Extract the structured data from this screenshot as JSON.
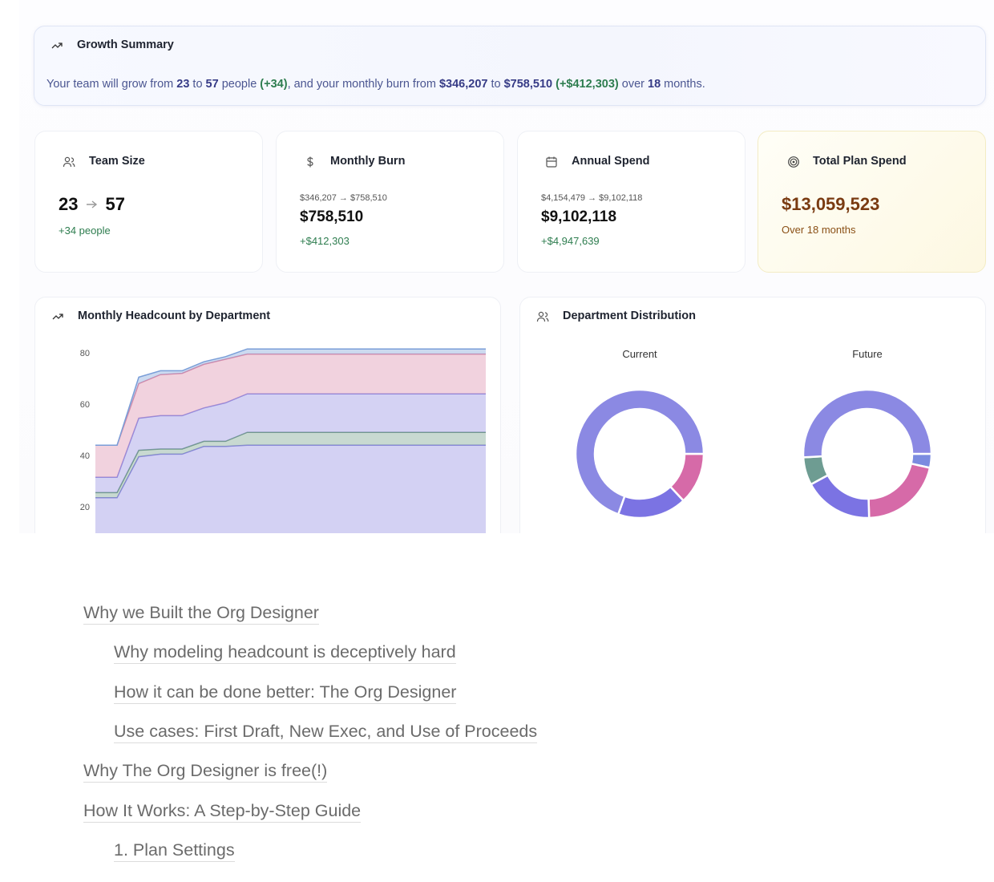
{
  "summary": {
    "title": "Growth Summary",
    "segments": [
      {
        "text": "Your team will grow from ",
        "style": "plain"
      },
      {
        "text": "23",
        "style": "strong"
      },
      {
        "text": " to ",
        "style": "plain"
      },
      {
        "text": "57",
        "style": "strong"
      },
      {
        "text": " people ",
        "style": "plain"
      },
      {
        "text": "(+34)",
        "style": "positive"
      },
      {
        "text": ", and your monthly burn from ",
        "style": "plain"
      },
      {
        "text": "$346,207",
        "style": "strong"
      },
      {
        "text": " to ",
        "style": "plain"
      },
      {
        "text": "$758,510",
        "style": "strong"
      },
      {
        "text": " ",
        "style": "plain"
      },
      {
        "text": "(+$412,303)",
        "style": "positive"
      },
      {
        "text": " over ",
        "style": "plain"
      },
      {
        "text": "18",
        "style": "strong"
      },
      {
        "text": " months.",
        "style": "plain"
      }
    ]
  },
  "cards": [
    {
      "title": "Team Size",
      "value_from": "23",
      "value_to": "57",
      "delta": "+34 people"
    },
    {
      "title": "Monthly Burn",
      "range": "$346,207 → $758,510",
      "value": "$758,510",
      "delta": "+$412,303"
    },
    {
      "title": "Annual Spend",
      "range": "$4,154,479 → $9,102,118",
      "value": "$9,102,118",
      "delta": "+$4,947,639"
    },
    {
      "title": "Total Plan Spend",
      "value": "$13,059,523",
      "note": "Over 18 months"
    }
  ],
  "distribution_title": "Department Distribution",
  "chart_data": [
    {
      "type": "area",
      "stacked": true,
      "title": "Monthly Headcount by Department",
      "categories": [
        null,
        null,
        null,
        null,
        null,
        null,
        null,
        null,
        null,
        null,
        null,
        null,
        null,
        null,
        null,
        null,
        null,
        null,
        null
      ],
      "series": [
        {
          "color": "#8b87e0",
          "values": [
            23.5,
            23.5,
            39.5,
            40.5,
            40.5,
            43.5,
            43.5,
            44,
            44,
            44,
            44,
            44,
            44,
            44,
            44,
            44,
            44,
            44,
            44
          ]
        },
        {
          "color": "#6f9a86",
          "values": [
            2,
            2,
            2.5,
            2,
            2,
            2,
            2,
            5,
            5,
            5,
            5,
            5,
            5,
            5,
            5,
            5,
            5,
            5,
            5
          ]
        },
        {
          "color": "#8e8ae0",
          "values": [
            6,
            6,
            12.5,
            13,
            13,
            13,
            15,
            15,
            15,
            15,
            15,
            15,
            15,
            15,
            15,
            15,
            15,
            15,
            15
          ]
        },
        {
          "color": "#d98aa8",
          "values": [
            12.5,
            12.5,
            13.5,
            16,
            16.5,
            17,
            17,
            15.5,
            15.5,
            15.5,
            15.5,
            15.5,
            15.5,
            15.5,
            15.5,
            15.5,
            15.5,
            15.5,
            15.5
          ]
        },
        {
          "color": "#7a9ed8",
          "values": [
            0,
            0,
            2.5,
            1.5,
            1,
            1,
            1,
            2,
            2,
            2,
            2,
            2,
            2,
            2,
            2,
            2,
            2,
            2,
            2
          ]
        }
      ],
      "ylim": [
        0,
        80
      ],
      "yticks": [
        20,
        40,
        60,
        80
      ],
      "grid": false
    },
    {
      "type": "donut",
      "title": "Current",
      "values": [
        0,
        3,
        4,
        0,
        16
      ],
      "colors": [
        "#7b8be0",
        "#d66aa8",
        "#7b73e3",
        "#6e9c92",
        "#8b89e3"
      ]
    },
    {
      "type": "donut",
      "title": "Future",
      "values": [
        2,
        12,
        10,
        4,
        29
      ],
      "colors": [
        "#7b8be0",
        "#d66aa8",
        "#7b73e3",
        "#6e9c92",
        "#8b89e3"
      ]
    }
  ],
  "toc": [
    {
      "text": "Why we Built the Org Designer",
      "level": 1
    },
    {
      "text": "Why modeling headcount is deceptively hard",
      "level": 2
    },
    {
      "text": "How it can be done better: The Org Designer",
      "level": 2
    },
    {
      "text": "Use cases: First Draft, New Exec, and Use of Proceeds",
      "level": 2
    },
    {
      "text": "Why The Org Designer is free(!)",
      "level": 1
    },
    {
      "text": "How It Works: A Step-by-Step Guide",
      "level": 1
    },
    {
      "text": "1. Plan Settings",
      "level": 2
    }
  ]
}
